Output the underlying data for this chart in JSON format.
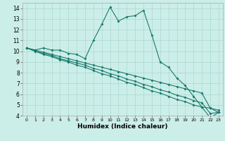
{
  "xlabel": "Humidex (Indice chaleur)",
  "ylabel": "",
  "bg_color": "#cceee8",
  "line_color": "#1a7a6e",
  "xlim": [
    -0.5,
    23.5
  ],
  "ylim": [
    4,
    14.5
  ],
  "xticks": [
    0,
    1,
    2,
    3,
    4,
    5,
    6,
    7,
    8,
    9,
    10,
    11,
    12,
    13,
    14,
    15,
    16,
    17,
    18,
    19,
    20,
    21,
    22,
    23
  ],
  "yticks": [
    4,
    5,
    6,
    7,
    8,
    9,
    10,
    11,
    12,
    13,
    14
  ],
  "line1_x": [
    0,
    1,
    2,
    3,
    4,
    5,
    6,
    7,
    8,
    9,
    10,
    11,
    12,
    13,
    14,
    15,
    16,
    17,
    18,
    19,
    20,
    21,
    22,
    23
  ],
  "line1_y": [
    10.3,
    10.1,
    10.3,
    10.1,
    10.1,
    9.8,
    9.7,
    9.3,
    11.0,
    12.5,
    14.1,
    12.8,
    13.2,
    13.3,
    13.8,
    11.5,
    9.0,
    8.5,
    7.5,
    6.8,
    5.8,
    4.8,
    4.7,
    4.3
  ],
  "line2_x": [
    0,
    1,
    2,
    3,
    4,
    5,
    6,
    7,
    8,
    9,
    10,
    11,
    12,
    13,
    14,
    15,
    16,
    17,
    18,
    19,
    20,
    21,
    22,
    23
  ],
  "line2_y": [
    10.3,
    10.0,
    9.7,
    9.5,
    9.2,
    9.0,
    8.7,
    8.5,
    8.2,
    7.9,
    7.7,
    7.4,
    7.1,
    6.9,
    6.6,
    6.3,
    6.1,
    5.8,
    5.5,
    5.3,
    5.0,
    4.8,
    3.8,
    4.3
  ],
  "line3_x": [
    0,
    1,
    2,
    3,
    4,
    5,
    6,
    7,
    8,
    9,
    10,
    11,
    12,
    13,
    14,
    15,
    16,
    17,
    18,
    19,
    20,
    21,
    22,
    23
  ],
  "line3_y": [
    10.3,
    10.0,
    9.8,
    9.6,
    9.3,
    9.1,
    8.9,
    8.7,
    8.4,
    8.2,
    7.9,
    7.7,
    7.4,
    7.2,
    6.9,
    6.7,
    6.4,
    6.2,
    5.9,
    5.7,
    5.4,
    5.2,
    4.2,
    4.3
  ],
  "line4_x": [
    0,
    1,
    2,
    3,
    4,
    5,
    6,
    7,
    8,
    9,
    10,
    11,
    12,
    13,
    14,
    15,
    16,
    17,
    18,
    19,
    20,
    21,
    22,
    23
  ],
  "line4_y": [
    10.3,
    10.1,
    9.9,
    9.7,
    9.5,
    9.3,
    9.1,
    8.9,
    8.7,
    8.5,
    8.3,
    8.1,
    7.9,
    7.7,
    7.5,
    7.3,
    7.1,
    6.9,
    6.7,
    6.5,
    6.3,
    6.1,
    4.7,
    4.5
  ]
}
